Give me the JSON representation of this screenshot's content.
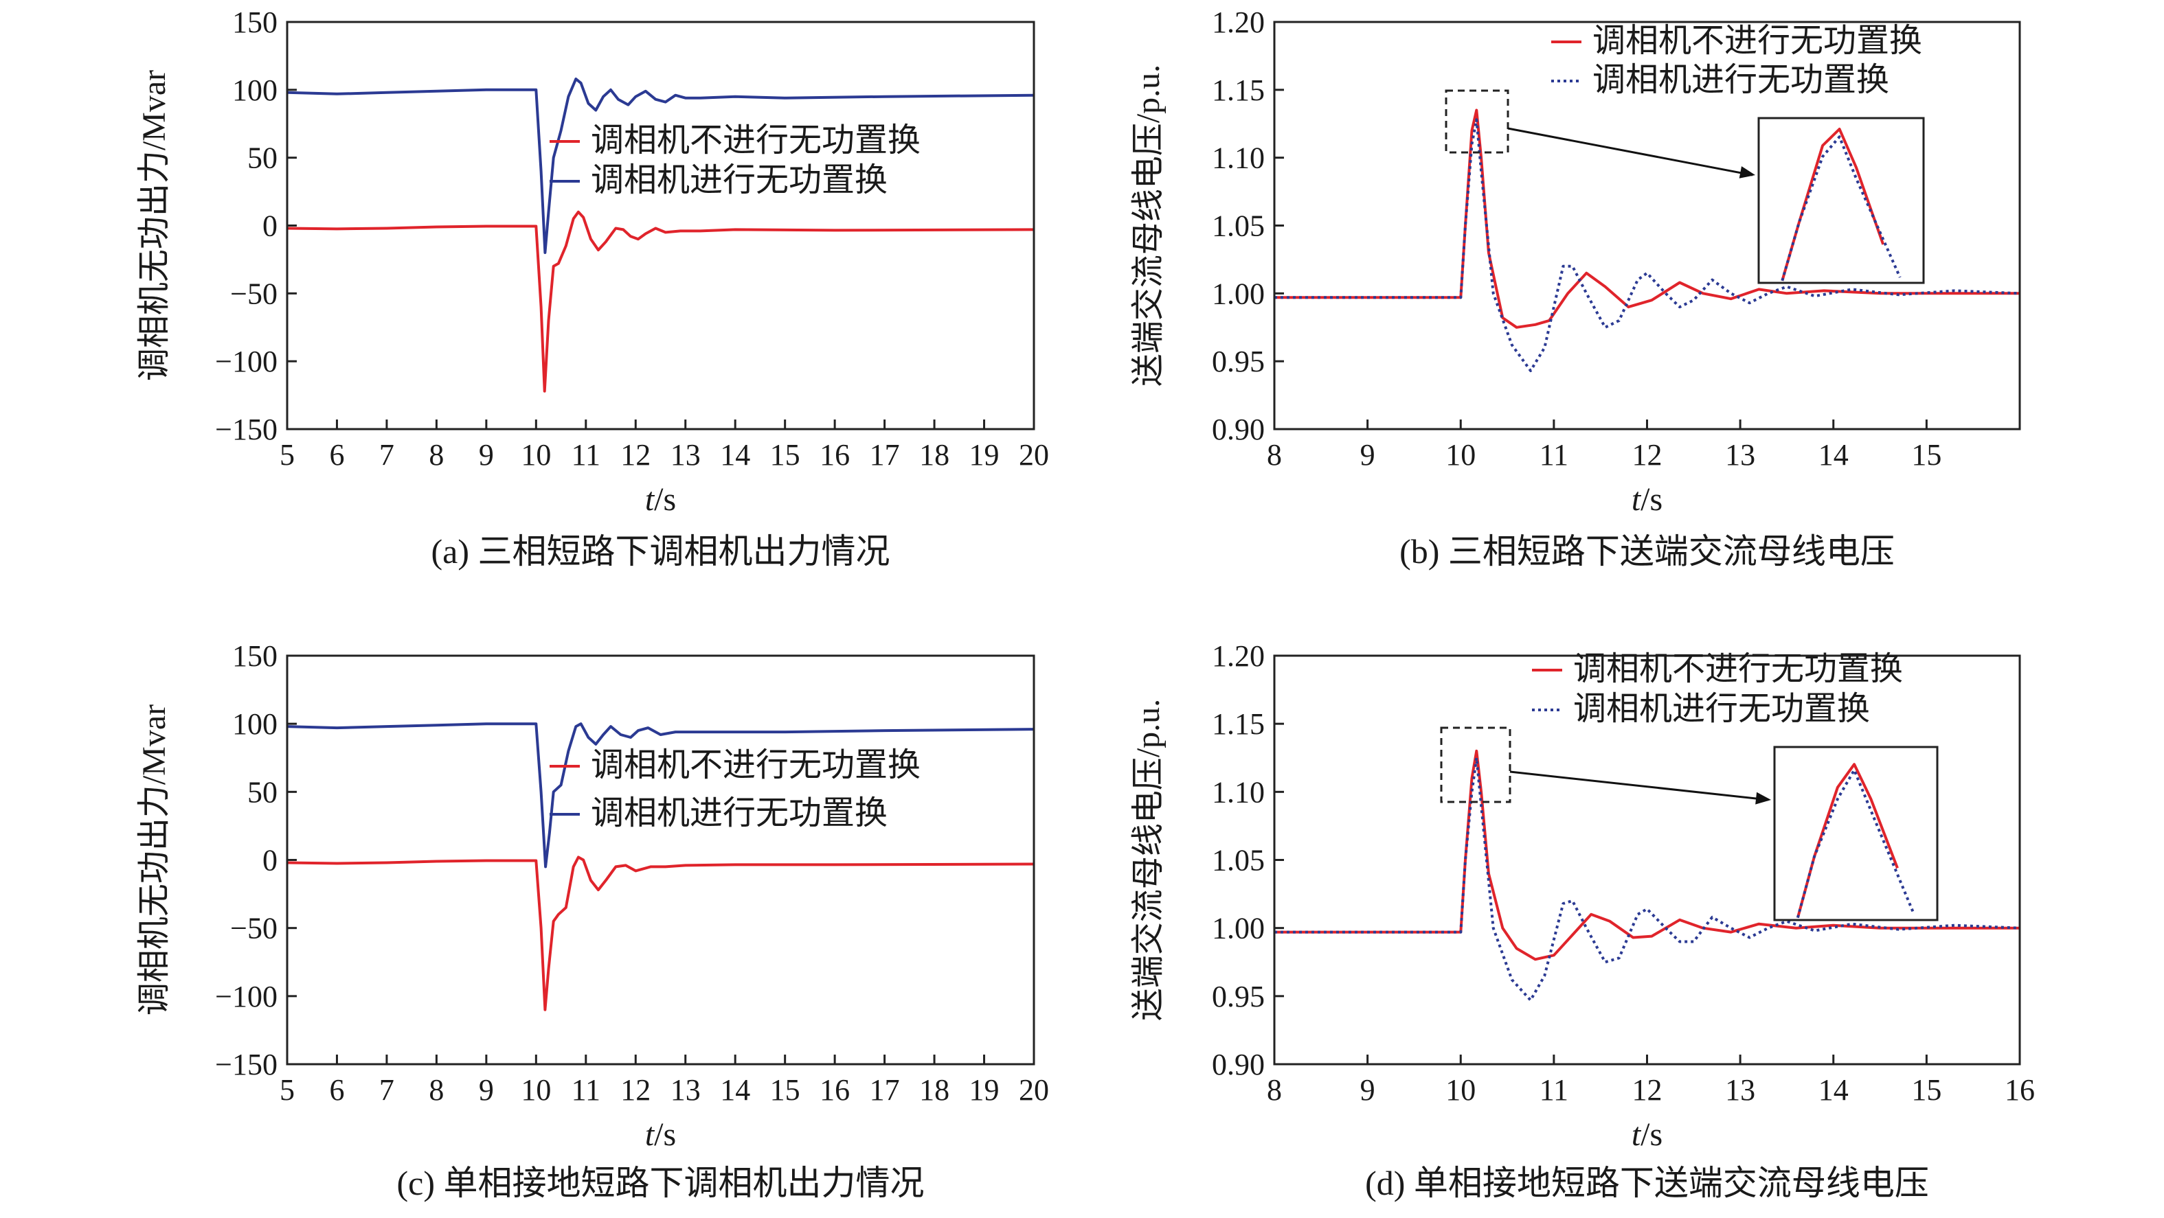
{
  "colors": {
    "red": "#e0242b",
    "blue": "#2b3a93",
    "axis": "#222222"
  },
  "chart_data": [
    {
      "id": "a",
      "type": "line",
      "caption": "(a) 三相短路下调相机出力情况",
      "xlabel_var": "t",
      "xlabel_unit": "/s",
      "ylabel": "调相机无功出力/Mvar",
      "xlim": [
        5,
        20
      ],
      "ylim": [
        -150,
        150
      ],
      "xticks": [
        5,
        6,
        7,
        8,
        9,
        10,
        11,
        12,
        13,
        14,
        15,
        16,
        17,
        18,
        19,
        20
      ],
      "yticks": [
        -150,
        -100,
        -50,
        0,
        50,
        100,
        150
      ],
      "legend_position": "center-right",
      "series": [
        {
          "name": "调相机不进行无功置换",
          "color": "#e0242b",
          "style": "solid",
          "points": [
            [
              5,
              -2
            ],
            [
              6,
              -2.5
            ],
            [
              7,
              -2
            ],
            [
              8,
              -1
            ],
            [
              9,
              -0.5
            ],
            [
              10.0,
              -0.5
            ],
            [
              10.1,
              -60
            ],
            [
              10.17,
              -122
            ],
            [
              10.25,
              -70
            ],
            [
              10.35,
              -30
            ],
            [
              10.45,
              -28
            ],
            [
              10.6,
              -15
            ],
            [
              10.75,
              5
            ],
            [
              10.85,
              10
            ],
            [
              10.95,
              6
            ],
            [
              11.1,
              -10
            ],
            [
              11.25,
              -18
            ],
            [
              11.4,
              -12
            ],
            [
              11.6,
              -2
            ],
            [
              11.75,
              -3
            ],
            [
              11.9,
              -8
            ],
            [
              12.05,
              -10
            ],
            [
              12.2,
              -6
            ],
            [
              12.4,
              -2
            ],
            [
              12.6,
              -5
            ],
            [
              12.9,
              -4
            ],
            [
              13.3,
              -4
            ],
            [
              14,
              -3
            ],
            [
              16,
              -3.5
            ],
            [
              20,
              -3
            ]
          ]
        },
        {
          "name": "调相机进行无功置换",
          "color": "#2b3a93",
          "style": "solid",
          "points": [
            [
              5,
              98
            ],
            [
              6,
              97
            ],
            [
              7,
              98
            ],
            [
              8,
              99
            ],
            [
              9,
              100
            ],
            [
              10.0,
              100
            ],
            [
              10.1,
              40
            ],
            [
              10.18,
              -20
            ],
            [
              10.25,
              10
            ],
            [
              10.35,
              50
            ],
            [
              10.5,
              70
            ],
            [
              10.65,
              95
            ],
            [
              10.8,
              108
            ],
            [
              10.9,
              105
            ],
            [
              11.05,
              90
            ],
            [
              11.2,
              85
            ],
            [
              11.35,
              95
            ],
            [
              11.5,
              100
            ],
            [
              11.65,
              93
            ],
            [
              11.85,
              89
            ],
            [
              12.0,
              95
            ],
            [
              12.2,
              99
            ],
            [
              12.4,
              93
            ],
            [
              12.6,
              91
            ],
            [
              12.8,
              96
            ],
            [
              13.0,
              94
            ],
            [
              13.3,
              94
            ],
            [
              14,
              95
            ],
            [
              15,
              94
            ],
            [
              17,
              95
            ],
            [
              20,
              96
            ]
          ]
        }
      ]
    },
    {
      "id": "b",
      "type": "line",
      "caption": "(b) 三相短路下送端交流母线电压",
      "xlabel_var": "t",
      "xlabel_unit": "/s",
      "ylabel": "送端交流母线电压/p.u.",
      "xlim": [
        8,
        16
      ],
      "ylim": [
        0.9,
        1.2
      ],
      "xticks": [
        8,
        9,
        10,
        11,
        12,
        13,
        14,
        15
      ],
      "yticks": [
        0.9,
        0.95,
        1.0,
        1.05,
        1.1,
        1.15,
        1.2
      ],
      "legend_position": "top-right",
      "zoom_inset": true,
      "series": [
        {
          "name": "调相机不进行无功置换",
          "color": "#e0242b",
          "style": "solid",
          "points": [
            [
              8,
              0.997
            ],
            [
              9,
              0.997
            ],
            [
              10.0,
              0.997
            ],
            [
              10.05,
              1.05
            ],
            [
              10.12,
              1.12
            ],
            [
              10.17,
              1.135
            ],
            [
              10.22,
              1.1
            ],
            [
              10.3,
              1.03
            ],
            [
              10.45,
              0.982
            ],
            [
              10.6,
              0.975
            ],
            [
              10.8,
              0.977
            ],
            [
              10.95,
              0.98
            ],
            [
              11.15,
              1.0
            ],
            [
              11.35,
              1.015
            ],
            [
              11.55,
              1.005
            ],
            [
              11.8,
              0.99
            ],
            [
              12.05,
              0.995
            ],
            [
              12.35,
              1.008
            ],
            [
              12.6,
              1.0
            ],
            [
              12.9,
              0.996
            ],
            [
              13.2,
              1.003
            ],
            [
              13.5,
              1.0
            ],
            [
              13.9,
              1.002
            ],
            [
              14.5,
              1.0
            ],
            [
              15.3,
              1.0
            ],
            [
              16,
              1.0
            ]
          ]
        },
        {
          "name": "调相机进行无功置换",
          "color": "#2b3a93",
          "style": "dotted",
          "points": [
            [
              8,
              0.997
            ],
            [
              9,
              0.997
            ],
            [
              10.0,
              0.997
            ],
            [
              10.05,
              1.05
            ],
            [
              10.12,
              1.11
            ],
            [
              10.17,
              1.128
            ],
            [
              10.22,
              1.09
            ],
            [
              10.35,
              1.0
            ],
            [
              10.55,
              0.962
            ],
            [
              10.75,
              0.943
            ],
            [
              10.9,
              0.96
            ],
            [
              11.1,
              1.02
            ],
            [
              11.2,
              1.02
            ],
            [
              11.35,
              1.0
            ],
            [
              11.55,
              0.975
            ],
            [
              11.7,
              0.98
            ],
            [
              11.9,
              1.01
            ],
            [
              12.0,
              1.015
            ],
            [
              12.2,
              1.0
            ],
            [
              12.35,
              0.99
            ],
            [
              12.5,
              0.995
            ],
            [
              12.7,
              1.01
            ],
            [
              12.9,
              1.0
            ],
            [
              13.1,
              0.993
            ],
            [
              13.3,
              1.0
            ],
            [
              13.5,
              1.005
            ],
            [
              13.8,
              0.998
            ],
            [
              14.2,
              1.003
            ],
            [
              14.7,
              0.999
            ],
            [
              15.3,
              1.002
            ],
            [
              16,
              1.0
            ]
          ]
        }
      ]
    },
    {
      "id": "c",
      "type": "line",
      "caption": "(c) 单相接地短路下调相机出力情况",
      "xlabel_var": "t",
      "xlabel_unit": "/s",
      "ylabel": "调相机无功出力/Mvar",
      "xlim": [
        5,
        20
      ],
      "ylim": [
        -150,
        150
      ],
      "xticks": [
        5,
        6,
        7,
        8,
        9,
        10,
        11,
        12,
        13,
        14,
        15,
        16,
        17,
        18,
        19,
        20
      ],
      "yticks": [
        -150,
        -100,
        -50,
        0,
        50,
        100,
        150
      ],
      "legend_position": "center-right",
      "series": [
        {
          "name": "调相机不进行无功置换",
          "color": "#e0242b",
          "style": "solid",
          "points": [
            [
              5,
              -2
            ],
            [
              6,
              -2.5
            ],
            [
              7,
              -2
            ],
            [
              8,
              -1
            ],
            [
              9,
              -0.5
            ],
            [
              10.0,
              -0.5
            ],
            [
              10.1,
              -50
            ],
            [
              10.18,
              -110
            ],
            [
              10.25,
              -80
            ],
            [
              10.35,
              -45
            ],
            [
              10.45,
              -40
            ],
            [
              10.6,
              -35
            ],
            [
              10.75,
              -5
            ],
            [
              10.85,
              2
            ],
            [
              10.95,
              0
            ],
            [
              11.1,
              -15
            ],
            [
              11.25,
              -22
            ],
            [
              11.4,
              -15
            ],
            [
              11.6,
              -5
            ],
            [
              11.8,
              -4
            ],
            [
              12.0,
              -8
            ],
            [
              12.3,
              -5
            ],
            [
              12.6,
              -5
            ],
            [
              13,
              -4
            ],
            [
              14,
              -3.5
            ],
            [
              16,
              -3.5
            ],
            [
              20,
              -3
            ]
          ]
        },
        {
          "name": "调相机进行无功置换",
          "color": "#2b3a93",
          "style": "solid",
          "points": [
            [
              5,
              98
            ],
            [
              6,
              97
            ],
            [
              7,
              98
            ],
            [
              8,
              99
            ],
            [
              9,
              100
            ],
            [
              10.0,
              100
            ],
            [
              10.1,
              50
            ],
            [
              10.19,
              -5
            ],
            [
              10.27,
              20
            ],
            [
              10.35,
              50
            ],
            [
              10.5,
              55
            ],
            [
              10.65,
              80
            ],
            [
              10.8,
              98
            ],
            [
              10.9,
              100
            ],
            [
              11.05,
              90
            ],
            [
              11.2,
              85
            ],
            [
              11.35,
              92
            ],
            [
              11.5,
              98
            ],
            [
              11.7,
              92
            ],
            [
              11.9,
              90
            ],
            [
              12.05,
              95
            ],
            [
              12.25,
              97
            ],
            [
              12.5,
              92
            ],
            [
              12.8,
              94
            ],
            [
              13.3,
              94
            ],
            [
              14,
              94
            ],
            [
              15,
              94
            ],
            [
              17,
              95
            ],
            [
              20,
              96
            ]
          ]
        }
      ]
    },
    {
      "id": "d",
      "type": "line",
      "caption": "(d) 单相接地短路下送端交流母线电压",
      "xlabel_var": "t",
      "xlabel_unit": "/s",
      "ylabel": "送端交流母线电压/p.u.",
      "xlim": [
        8,
        16
      ],
      "ylim": [
        0.9,
        1.2
      ],
      "xticks": [
        8,
        9,
        10,
        11,
        12,
        13,
        14,
        15,
        16
      ],
      "yticks": [
        0.9,
        0.95,
        1.0,
        1.05,
        1.1,
        1.15,
        1.2
      ],
      "legend_position": "top-right",
      "zoom_inset": true,
      "series": [
        {
          "name": "调相机不进行无功置换",
          "color": "#e0242b",
          "style": "solid",
          "points": [
            [
              8,
              0.997
            ],
            [
              9,
              0.997
            ],
            [
              10.0,
              0.997
            ],
            [
              10.05,
              1.05
            ],
            [
              10.12,
              1.11
            ],
            [
              10.17,
              1.13
            ],
            [
              10.22,
              1.1
            ],
            [
              10.3,
              1.04
            ],
            [
              10.45,
              1.0
            ],
            [
              10.6,
              0.985
            ],
            [
              10.8,
              0.977
            ],
            [
              11.0,
              0.98
            ],
            [
              11.2,
              0.995
            ],
            [
              11.4,
              1.01
            ],
            [
              11.6,
              1.005
            ],
            [
              11.85,
              0.993
            ],
            [
              12.05,
              0.994
            ],
            [
              12.35,
              1.006
            ],
            [
              12.6,
              1.0
            ],
            [
              12.9,
              0.997
            ],
            [
              13.2,
              1.003
            ],
            [
              13.6,
              1.0
            ],
            [
              14.0,
              1.002
            ],
            [
              14.5,
              1.0
            ],
            [
              15.3,
              1.0
            ],
            [
              16,
              1.0
            ]
          ]
        },
        {
          "name": "调相机进行无功置换",
          "color": "#2b3a93",
          "style": "dotted",
          "points": [
            [
              8,
              0.997
            ],
            [
              9,
              0.997
            ],
            [
              10.0,
              0.997
            ],
            [
              10.05,
              1.05
            ],
            [
              10.12,
              1.1
            ],
            [
              10.17,
              1.125
            ],
            [
              10.22,
              1.09
            ],
            [
              10.35,
              1.0
            ],
            [
              10.55,
              0.962
            ],
            [
              10.75,
              0.947
            ],
            [
              10.9,
              0.965
            ],
            [
              11.1,
              1.018
            ],
            [
              11.2,
              1.02
            ],
            [
              11.35,
              1.0
            ],
            [
              11.55,
              0.975
            ],
            [
              11.7,
              0.978
            ],
            [
              11.9,
              1.01
            ],
            [
              12.0,
              1.014
            ],
            [
              12.2,
              1.0
            ],
            [
              12.35,
              0.99
            ],
            [
              12.5,
              0.99
            ],
            [
              12.7,
              1.008
            ],
            [
              12.9,
              1.0
            ],
            [
              13.1,
              0.993
            ],
            [
              13.3,
              1.0
            ],
            [
              13.5,
              1.005
            ],
            [
              13.8,
              0.998
            ],
            [
              14.2,
              1.003
            ],
            [
              14.7,
              0.999
            ],
            [
              15.3,
              1.002
            ],
            [
              16,
              1.0
            ]
          ]
        }
      ]
    }
  ]
}
